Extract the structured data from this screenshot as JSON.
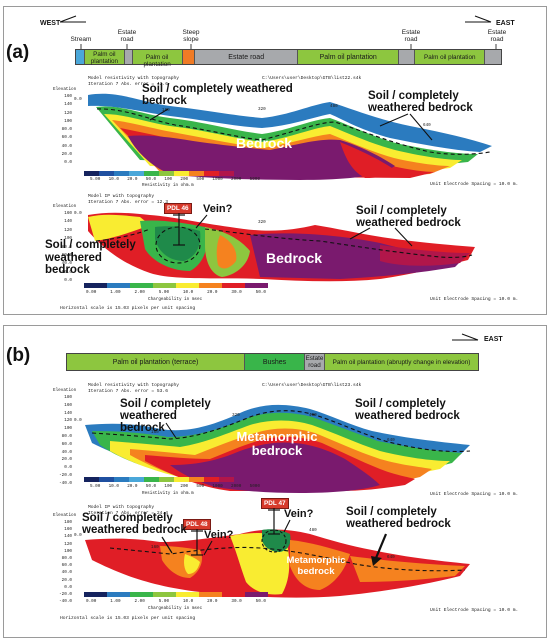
{
  "panel_a": {
    "label": "(a)",
    "west": "WEST",
    "east": "EAST",
    "strip_labels": {
      "stream": "Stream",
      "palm1": "Palm oil plantation",
      "estate_road_1": "Estate road",
      "palm2": "Palm oil plantation",
      "steep_slope": "Steep slope",
      "estate_road_2": "Estate road",
      "palm3": "Palm oil plantation",
      "estate_road_3": "Estate road",
      "palm4": "Palm oil plantation",
      "estate_road_4": "Estate road"
    },
    "res": {
      "title1": "Model resistivity with topography",
      "title2": "Iteration 7 Abs. error = 43.6",
      "path": "C:\\Users\\user\\Desktop\\GTB\\list22.s4k",
      "elev": "Elevation",
      "yticks": [
        "160",
        "140",
        "120",
        "100",
        "80.0",
        "60.0",
        "40.0",
        "20.0",
        "0.0"
      ],
      "dist_left": "0.0",
      "dist_labels": [
        "160",
        "320",
        "480",
        "640"
      ],
      "anno_soil_left": "Soil / completely weathered bedrock",
      "anno_soil_right": "Soil / completely weathered bedrock",
      "anno_bedrock": "Bedrock",
      "scale_ticks": [
        "5.00",
        "10.0",
        "20.0",
        "50.0",
        "100",
        "200",
        "500",
        "1000",
        "2000",
        "5000"
      ],
      "scale_title": "Resistivity in ohm.m",
      "spacing": "Unit Electrode Spacing = 10.0 m."
    },
    "ip": {
      "title1": "Model IP with topography",
      "title2": "Iteration 7 Abs. error = 12.3",
      "elev": "Elevation",
      "yticks": [
        "160",
        "140",
        "120",
        "100",
        "80.0",
        "60.0",
        "40.0",
        "20.0",
        "0.0"
      ],
      "dist_left": "0.0",
      "dist_labels": [
        "160",
        "320",
        "480",
        "640"
      ],
      "pdl": "PDL 46",
      "vein": "Vein?",
      "anno_soil_left": "Soil / completely weathered bedrock",
      "anno_soil_right": "Soil / completely weathered bedrock",
      "anno_bedrock": "Bedrock",
      "scale_ticks": [
        "0.00",
        "1.00",
        "2.00",
        "5.00",
        "10.0",
        "20.0",
        "30.0",
        "50.0"
      ],
      "scale_title": "Chargeability in msec",
      "spacing": "Unit Electrode Spacing = 10.0 m.",
      "hscale": "Horizontal scale is 15.03 pixels per unit spacing"
    }
  },
  "panel_b": {
    "label": "(b)",
    "east": "EAST",
    "strip_labels": {
      "palm_terrace": "Palm oil plantation (terrace)",
      "bushes": "Bushes",
      "estate_road": "Estate road",
      "palm_abrupt": "Palm oil plantation (abruptly change in elevation)"
    },
    "res": {
      "title1": "Model resistivity with topography",
      "title2": "Iteration 7 Abs. error = 53.6",
      "path": "C:\\Users\\user\\Desktop\\GTB\\list23.s4k",
      "elev": "Elevation",
      "yticks": [
        "180",
        "160",
        "140",
        "120",
        "100",
        "80.0",
        "60.0",
        "40.0",
        "20.0",
        "0.0",
        "-20.0",
        "-40.0"
      ],
      "dist_left": "0.0",
      "dist_labels": [
        "160",
        "320",
        "480",
        "640"
      ],
      "anno_soil_left": "Soil / completely weathered bedrock",
      "anno_soil_right": "Soil / completely weathered bedrock",
      "anno_meta": "Metamorphic bedrock",
      "scale_ticks": [
        "5.00",
        "10.0",
        "20.0",
        "50.0",
        "100",
        "200",
        "500",
        "1000",
        "2000",
        "5000"
      ],
      "scale_title": "Resistivity in ohm.m",
      "spacing": "Unit Electrode Spacing = 10.0 m."
    },
    "ip": {
      "title1": "Model IP with topography",
      "title2": "Iteration 7 Abs. error = 24.4",
      "elev": "Elevation",
      "yticks": [
        "180",
        "160",
        "140",
        "120",
        "100",
        "80.0",
        "60.0",
        "40.0",
        "20.0",
        "0.0",
        "-20.0",
        "-40.0"
      ],
      "dist_left": "0.0",
      "dist_labels": [
        "160",
        "320",
        "480",
        "640"
      ],
      "pdl_48": "PDL 48",
      "pdl_47": "PDL 47",
      "vein_1": "Vein?",
      "vein_2": "Vein?",
      "anno_soil_left": "Soil / completely weathered bedrock",
      "anno_soil_right": "Soil / completely weathered bedrock",
      "anno_meta": "Metamorphic bedrock",
      "scale_ticks": [
        "0.00",
        "1.00",
        "2.00",
        "5.00",
        "10.0",
        "20.0",
        "30.0",
        "50.0"
      ],
      "scale_title": "Chargeability in msec",
      "spacing": "Unit Electrode Spacing = 10.0 m.",
      "hscale": "Horizontal scale is 15.03 pixels per unit spacing"
    }
  },
  "colors": {
    "palm": "#8dc63f",
    "road": "#a7a9ac",
    "stream": "#4aa7d9",
    "steep": "#f07b25",
    "bushes": "#39b54a",
    "bedrock": "#7a1a6e",
    "red": "#e01e26",
    "orange": "#f5821f",
    "yellow": "#f9ec31",
    "green": "#8dc63f",
    "blue": "#2b7bbf",
    "pdl": "#d73a2c"
  }
}
